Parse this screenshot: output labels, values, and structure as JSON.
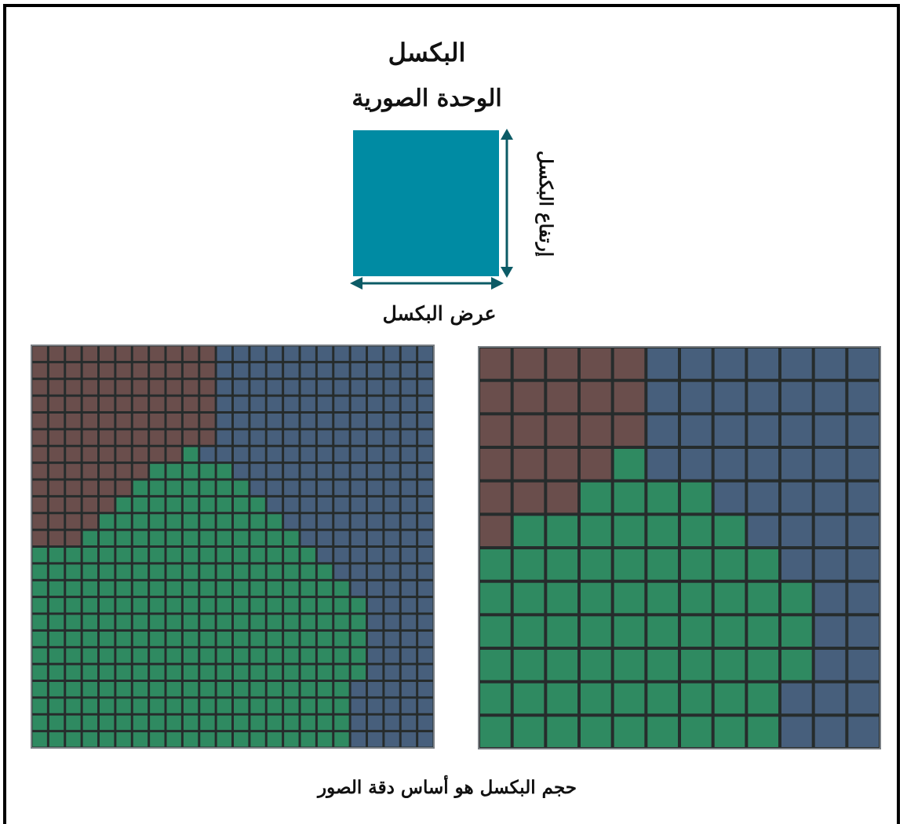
{
  "diagram": {
    "title": "البكسل",
    "subtitle": "الوحدة الصورية",
    "height_label": "إرتفاع البكسل",
    "width_label": "عرض البكسل",
    "caption": "حجم البكسل هو أساس دقة الصور",
    "square_color": "#008ba3",
    "arrow_color": "#0c5b66"
  },
  "grids": {
    "colors": {
      "brown": "#6a4e4c",
      "blue": "#475f7c",
      "green": "#2f8a61",
      "line": "#262c2c",
      "border": "#7a7f84"
    },
    "fine": {
      "cols": 24,
      "rows": 24,
      "brown_until_col": [
        11,
        11,
        11,
        11,
        11,
        11,
        10,
        10,
        9,
        8,
        8,
        7,
        4,
        0,
        0,
        0,
        0,
        0,
        0,
        0,
        0,
        0,
        0,
        0
      ],
      "green_range": [
        null,
        null,
        null,
        null,
        null,
        null,
        [
          9,
          9
        ],
        [
          7,
          11
        ],
        [
          6,
          12
        ],
        [
          5,
          13
        ],
        [
          4,
          14
        ],
        [
          3,
          15
        ],
        [
          0,
          16
        ],
        [
          0,
          17
        ],
        [
          0,
          18
        ],
        [
          0,
          19
        ],
        [
          0,
          19
        ],
        [
          0,
          19
        ],
        [
          0,
          19
        ],
        [
          0,
          19
        ],
        [
          0,
          18
        ],
        [
          0,
          18
        ],
        [
          0,
          18
        ],
        [
          0,
          18
        ]
      ]
    },
    "coarse": {
      "cols": 12,
      "rows": 12,
      "brown_until_col": [
        5,
        5,
        5,
        4,
        3,
        1,
        0,
        0,
        0,
        0,
        0,
        0
      ],
      "green_range": [
        null,
        null,
        null,
        [
          4,
          4
        ],
        [
          3,
          6
        ],
        [
          1,
          7
        ],
        [
          0,
          8
        ],
        [
          0,
          9
        ],
        [
          0,
          9
        ],
        [
          0,
          9
        ],
        [
          0,
          8
        ],
        [
          0,
          8
        ]
      ]
    }
  }
}
